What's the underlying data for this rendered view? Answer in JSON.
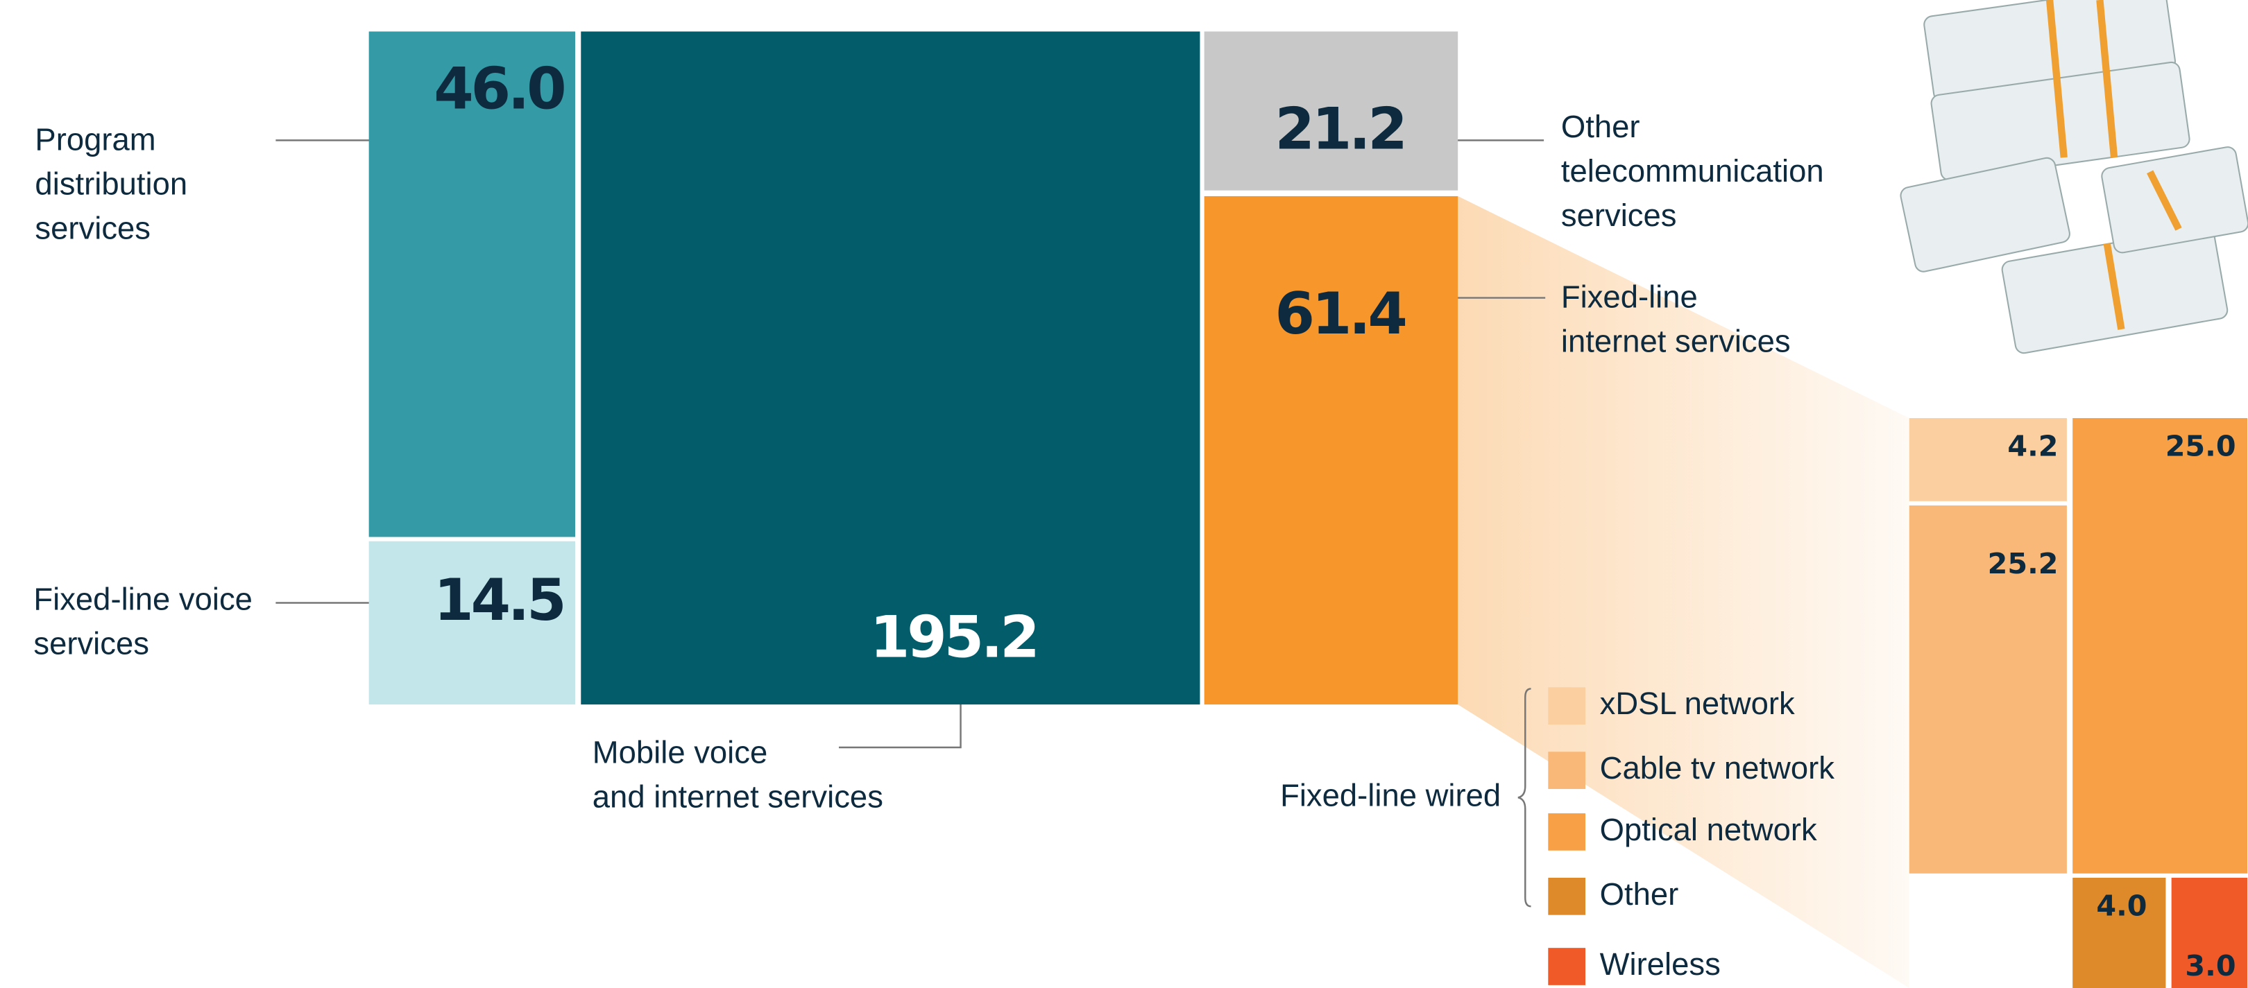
{
  "chart_data": {
    "type": "treemap",
    "categories": [
      [
        "Program",
        "distribution",
        "services"
      ],
      [
        "Fixed-line voice",
        "services"
      ],
      [
        "Mobile voice",
        "and internet services"
      ],
      [
        "Other",
        "telecommunication",
        "services"
      ],
      [
        "Fixed-line",
        "internet services"
      ]
    ],
    "values": [
      46,
      14.5,
      195.2,
      21.2,
      61.4
    ],
    "value_labels": [
      "46.0",
      "14.5",
      "195.2",
      "21.2",
      "61.4"
    ],
    "colors": [
      "#339aa6",
      "#c2e6ea",
      "#025c6a",
      "#c8c8c8",
      "#f7962a"
    ],
    "breakdown": {
      "group_label": "Fixed-line wired",
      "categories": [
        "xDSL network",
        "Cable tv network",
        "Optical network",
        "Other",
        "Wireless"
      ],
      "values": [
        4.2,
        25.2,
        25,
        4,
        3
      ],
      "value_labels": [
        "4.2",
        "25.2",
        "25.0",
        "4.0",
        "3.0"
      ],
      "colors": [
        "#fbcfa0",
        "#f9b877",
        "#f7a045",
        "#de8a2b",
        "#ef5a28"
      ]
    }
  }
}
